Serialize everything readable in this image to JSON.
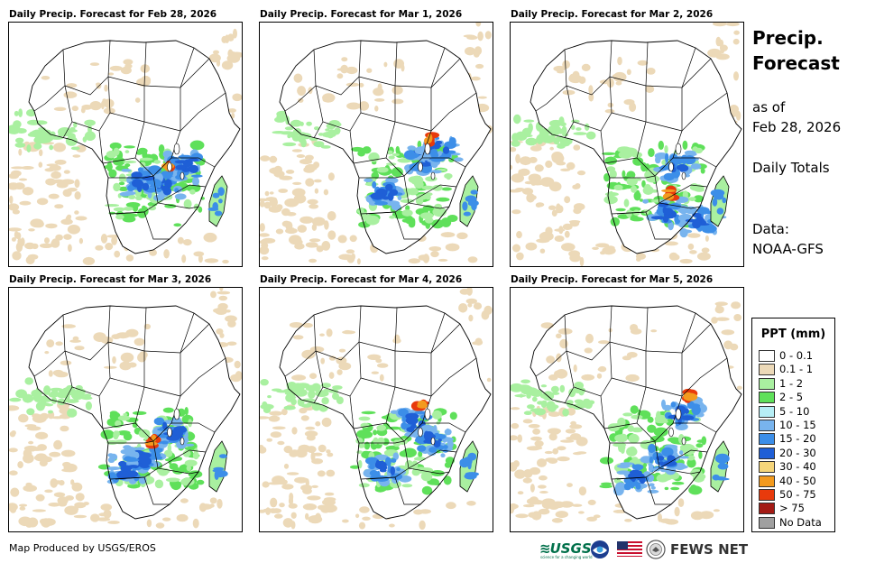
{
  "panels": [
    {
      "title": "Daily Precip. Forecast for Feb 28, 2026"
    },
    {
      "title": "Daily Precip. Forecast for Mar 1, 2026"
    },
    {
      "title": "Daily Precip. Forecast for Mar 2, 2026"
    },
    {
      "title": "Daily Precip. Forecast for Mar 3, 2026"
    },
    {
      "title": "Daily Precip. Forecast for Mar 4, 2026"
    },
    {
      "title": "Daily Precip. Forecast for Mar 5, 2026"
    }
  ],
  "sidebar": {
    "title": "Precip. Forecast",
    "title_line1": "Precip.",
    "title_line2": "Forecast",
    "as_of_label": "as of",
    "as_of_date": "Feb 28, 2026",
    "totals": "Daily Totals",
    "data_label": "Data:",
    "data_source": "NOAA-GFS"
  },
  "legend": {
    "title": "PPT (mm)",
    "items": [
      {
        "label": "0 - 0.1",
        "color": "#ffffff"
      },
      {
        "label": "0.1 - 1",
        "color": "#ecd9b8"
      },
      {
        "label": "1 - 2",
        "color": "#a9f0a0"
      },
      {
        "label": "2 - 5",
        "color": "#5fe05a"
      },
      {
        "label": "5 - 10",
        "color": "#b6eef5"
      },
      {
        "label": "10 - 15",
        "color": "#78b4ee"
      },
      {
        "label": "15 - 20",
        "color": "#3c8ee8"
      },
      {
        "label": "20 - 30",
        "color": "#1f5fd6"
      },
      {
        "label": "30 - 40",
        "color": "#f5d57a"
      },
      {
        "label": "40 - 50",
        "color": "#f39a1e"
      },
      {
        "label": "50 - 75",
        "color": "#e83a0c"
      },
      {
        "label": "> 75",
        "color": "#a31a14"
      },
      {
        "label": "No Data",
        "color": "#a0a0a0"
      }
    ]
  },
  "footer": {
    "credit": "Map Produced by USGS/EROS",
    "usgs": "USGS",
    "usgs_tagline": "science for a changing world",
    "fews": "FEWS NET"
  }
}
